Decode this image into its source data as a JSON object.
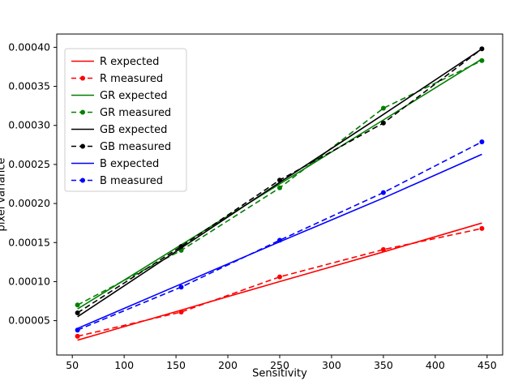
{
  "chart_data": {
    "type": "line",
    "title": "",
    "xlabel": "Sensitivity",
    "ylabel": "pixel variance",
    "xlim": [
      35,
      465
    ],
    "ylim": [
      6e-06,
      0.000417
    ],
    "xticks": [
      50,
      100,
      150,
      200,
      250,
      300,
      350,
      400,
      450
    ],
    "yticks": [
      {
        "v": 5e-05,
        "label": "0.00005"
      },
      {
        "v": 0.0001,
        "label": "0.00010"
      },
      {
        "v": 0.00015,
        "label": "0.00015"
      },
      {
        "v": 0.0002,
        "label": "0.00020"
      },
      {
        "v": 0.00025,
        "label": "0.00025"
      },
      {
        "v": 0.0003,
        "label": "0.00030"
      },
      {
        "v": 0.00035,
        "label": "0.00035"
      },
      {
        "v": 0.0004,
        "label": "0.00040"
      }
    ],
    "x": [
      55,
      155,
      250,
      350,
      445
    ],
    "series": [
      {
        "name": "R expected",
        "color": "#ff0000",
        "style": "solid",
        "marker": false,
        "values": [
          2.5e-05,
          6.35e-05,
          0.0001,
          0.000138,
          0.000175
        ]
      },
      {
        "name": "R measured",
        "color": "#ff0000",
        "style": "dashed",
        "marker": true,
        "values": [
          3e-05,
          6.1e-05,
          0.000106,
          0.000141,
          0.000168
        ]
      },
      {
        "name": "GR expected",
        "color": "#008000",
        "style": "solid",
        "marker": false,
        "values": [
          6.5e-05,
          0.000147,
          0.000225,
          0.000307,
          0.000385
        ]
      },
      {
        "name": "GR measured",
        "color": "#008000",
        "style": "dashed",
        "marker": true,
        "values": [
          7e-05,
          0.00014,
          0.00022,
          0.000322,
          0.000383
        ]
      },
      {
        "name": "GB expected",
        "color": "#000000",
        "style": "solid",
        "marker": false,
        "values": [
          5.5e-05,
          0.000143,
          0.000227,
          0.000314,
          0.000398
        ]
      },
      {
        "name": "GB measured",
        "color": "#000000",
        "style": "dashed",
        "marker": true,
        "values": [
          6e-05,
          0.000145,
          0.00023,
          0.000303,
          0.000398
        ]
      },
      {
        "name": "B expected",
        "color": "#0000ff",
        "style": "solid",
        "marker": false,
        "values": [
          4e-05,
          9.7e-05,
          0.000151,
          0.000207,
          0.000263
        ]
      },
      {
        "name": "B measured",
        "color": "#0000ff",
        "style": "dashed",
        "marker": true,
        "values": [
          3.8e-05,
          9.3e-05,
          0.000153,
          0.000214,
          0.000279
        ]
      }
    ],
    "legend": [
      "R expected",
      "R measured",
      "GR expected",
      "GR measured",
      "GB expected",
      "GB measured",
      "B expected",
      "B measured"
    ],
    "legend_position": "upper left",
    "grid": false,
    "frame_color": "#000000",
    "legend_border_color": "#cccccc"
  }
}
